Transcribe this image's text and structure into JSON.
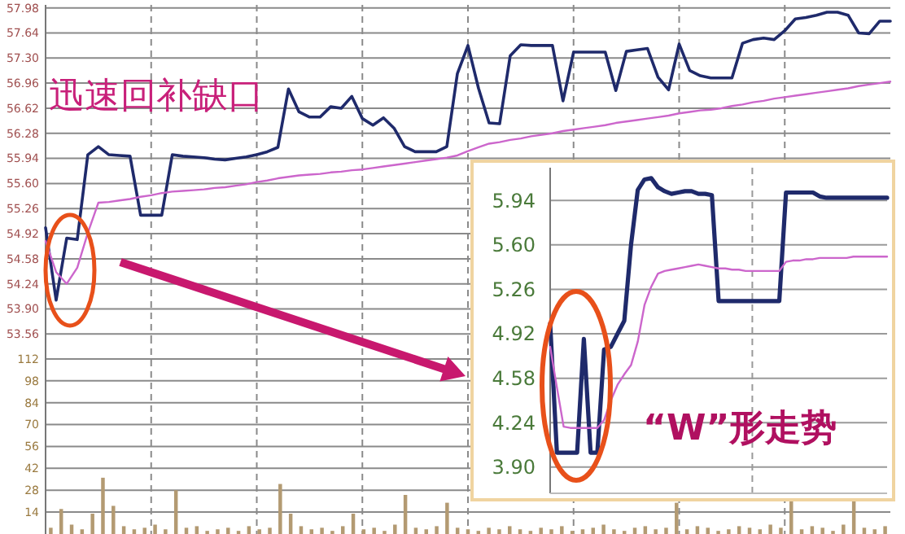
{
  "chart_data": [
    {
      "type": "line",
      "categories": [
        null,
        null,
        null,
        null,
        null,
        null,
        null,
        null,
        null,
        null,
        null,
        null,
        null,
        null,
        null,
        null,
        null,
        null,
        null,
        null,
        null,
        null,
        null,
        null,
        null,
        null,
        null,
        null,
        null,
        null,
        null,
        null,
        null,
        null,
        null,
        null,
        null,
        null,
        null,
        null,
        null,
        null,
        null,
        null,
        null,
        null,
        null,
        null,
        null,
        null,
        null,
        null,
        null,
        null,
        null,
        null,
        null,
        null,
        null,
        null,
        null,
        null,
        null,
        null,
        null,
        null,
        null,
        null,
        null,
        null,
        null,
        null,
        null,
        null,
        null,
        null,
        null,
        null,
        null,
        null,
        null
      ],
      "ylim": [
        53.52,
        58.02
      ],
      "yticks": [
        53.56,
        {
          "value": 53.9,
          "label": "53.90"
        },
        54.24,
        54.58,
        54.92,
        55.26,
        {
          "value": 55.6,
          "label": "55.60"
        },
        55.94,
        56.28,
        56.62,
        56.96,
        {
          "value": 57.3,
          "label": "57.30"
        },
        57.64,
        57.98
      ],
      "grid": true,
      "tick_labels": "y",
      "annotations": [
        "迅速回补缺口"
      ],
      "series": [
        {
          "color": "#1f2a6b",
          "values": [
            55.0,
            54.02,
            54.86,
            54.84,
            55.99,
            56.1,
            55.99,
            55.98,
            55.97,
            55.17,
            55.17,
            55.17,
            55.99,
            55.97,
            55.96,
            55.95,
            55.93,
            55.92,
            55.94,
            55.96,
            55.99,
            56.03,
            56.09,
            56.88,
            56.57,
            56.5,
            56.5,
            56.64,
            56.62,
            56.78,
            56.48,
            56.39,
            56.49,
            56.35,
            56.1,
            56.03,
            56.03,
            56.03,
            56.1,
            57.09,
            57.47,
            56.89,
            56.42,
            56.41,
            57.33,
            57.48,
            57.47,
            57.47,
            57.47,
            56.72,
            57.38,
            57.38,
            57.38,
            57.38,
            56.86,
            57.39,
            57.41,
            57.43,
            57.04,
            56.87,
            57.49,
            57.13,
            57.06,
            57.03,
            57.03,
            57.03,
            57.5,
            57.55,
            57.57,
            57.55,
            57.67,
            57.83,
            57.85,
            57.88,
            57.92,
            57.92,
            57.88,
            57.64,
            57.63,
            57.8,
            57.8
          ]
        },
        {
          "color": "#cc66cc",
          "values": [
            54.82,
            54.4,
            54.24,
            54.46,
            54.93,
            55.34,
            55.35,
            55.37,
            55.39,
            55.42,
            55.44,
            55.47,
            55.49,
            55.5,
            55.51,
            55.52,
            55.54,
            55.55,
            55.57,
            55.59,
            55.62,
            55.64,
            55.67,
            55.69,
            55.71,
            55.72,
            55.73,
            55.75,
            55.76,
            55.78,
            55.79,
            55.81,
            55.83,
            55.85,
            55.87,
            55.89,
            55.91,
            55.93,
            55.95,
            55.98,
            56.04,
            56.09,
            56.14,
            56.16,
            56.19,
            56.21,
            56.24,
            56.26,
            56.28,
            56.31,
            56.33,
            56.35,
            56.37,
            56.39,
            56.42,
            56.44,
            56.46,
            56.48,
            56.5,
            56.52,
            56.55,
            56.57,
            56.59,
            56.6,
            56.62,
            56.65,
            56.67,
            56.7,
            56.72,
            56.75,
            56.77,
            56.79,
            56.81,
            56.83,
            56.85,
            56.87,
            56.89,
            56.92,
            56.94,
            56.96,
            56.98
          ]
        }
      ]
    },
    {
      "type": "bar",
      "categories": [
        null,
        null,
        null,
        null,
        null,
        null,
        null,
        null,
        null,
        null,
        null,
        null,
        null,
        null,
        null,
        null,
        null,
        null,
        null,
        null,
        null,
        null,
        null,
        null,
        null,
        null,
        null,
        null,
        null,
        null,
        null,
        null,
        null,
        null,
        null,
        null,
        null,
        null,
        null,
        null,
        null,
        null,
        null,
        null,
        null,
        null,
        null,
        null,
        null,
        null,
        null,
        null,
        null,
        null,
        null,
        null,
        null,
        null,
        null,
        null,
        null,
        null,
        null,
        null,
        null,
        null,
        null,
        null,
        null,
        null,
        null,
        null,
        null,
        null,
        null,
        null,
        null,
        null,
        null,
        null,
        null
      ],
      "ylim": [
        0,
        126
      ],
      "yticks": [
        14,
        28,
        42,
        56,
        70,
        84,
        98,
        112
      ],
      "grid": true,
      "tick_labels": "y",
      "series": [
        {
          "color": "#b39a72",
          "values": [
            4,
            16,
            6,
            3,
            13,
            36,
            18,
            5,
            3,
            4,
            6,
            3,
            28,
            4,
            5,
            2,
            3,
            4,
            2,
            5,
            3,
            4,
            32,
            13,
            5,
            3,
            4,
            2,
            5,
            13,
            3,
            4,
            2,
            6,
            25,
            4,
            3,
            5,
            20,
            4,
            3,
            2,
            4,
            3,
            5,
            3,
            2,
            4,
            3,
            5,
            2,
            3,
            4,
            6,
            3,
            2,
            4,
            5,
            3,
            4,
            20,
            3,
            5,
            4,
            2,
            3,
            5,
            4,
            3,
            6,
            4,
            21,
            3,
            5,
            4,
            2,
            6,
            23,
            4,
            3,
            5
          ]
        }
      ]
    },
    {
      "type": "line",
      "categories": [
        null,
        null,
        null,
        null,
        null,
        null,
        null,
        null,
        null,
        null,
        null,
        null,
        null,
        null,
        null,
        null,
        null,
        null,
        null,
        null,
        null,
        null,
        null,
        null,
        null,
        null,
        null,
        null,
        null,
        null,
        null,
        null,
        null,
        null,
        null,
        null,
        null,
        null,
        null,
        null,
        null,
        null,
        null,
        null,
        null,
        null,
        null,
        null,
        null,
        null,
        null
      ],
      "ylim": [
        3.7,
        6.19
      ],
      "yticks": [
        5.94,
        {
          "value": 5.6,
          "label": "5.60"
        },
        5.26,
        4.92,
        4.58,
        4.24,
        {
          "value": 3.9,
          "label": "3.90"
        }
      ],
      "grid": true,
      "tick_labels": "y",
      "annotations": [
        "“W”形走势"
      ],
      "series": [
        {
          "color": "#1f2a6b",
          "values": [
            5.0,
            4.01,
            4.01,
            4.01,
            4.01,
            4.88,
            4.01,
            4.01,
            4.8,
            4.82,
            4.92,
            5.02,
            5.6,
            6.02,
            6.1,
            6.11,
            6.04,
            6.01,
            5.99,
            6.0,
            6.01,
            6.01,
            5.99,
            5.99,
            5.98,
            5.17,
            5.17,
            5.17,
            5.17,
            5.17,
            5.17,
            5.17,
            5.17,
            5.17,
            5.17,
            6.0,
            6.0,
            6.0,
            6.0,
            6.0,
            5.97,
            5.96,
            5.96,
            5.96,
            5.96,
            5.96,
            5.96,
            5.96,
            5.96,
            5.96,
            5.96
          ]
        },
        {
          "color": "#cc66cc",
          "values": [
            4.82,
            4.51,
            4.21,
            4.2,
            4.2,
            4.2,
            4.2,
            4.2,
            4.26,
            4.41,
            4.53,
            4.61,
            4.68,
            4.86,
            5.14,
            5.28,
            5.38,
            5.4,
            5.41,
            5.42,
            5.43,
            5.44,
            5.45,
            5.44,
            5.43,
            5.42,
            5.42,
            5.41,
            5.41,
            5.4,
            5.4,
            5.4,
            5.4,
            5.4,
            5.4,
            5.47,
            5.48,
            5.48,
            5.49,
            5.49,
            5.5,
            5.5,
            5.5,
            5.5,
            5.5,
            5.51,
            5.51,
            5.51,
            5.51,
            5.51,
            5.51
          ]
        }
      ]
    }
  ]
}
